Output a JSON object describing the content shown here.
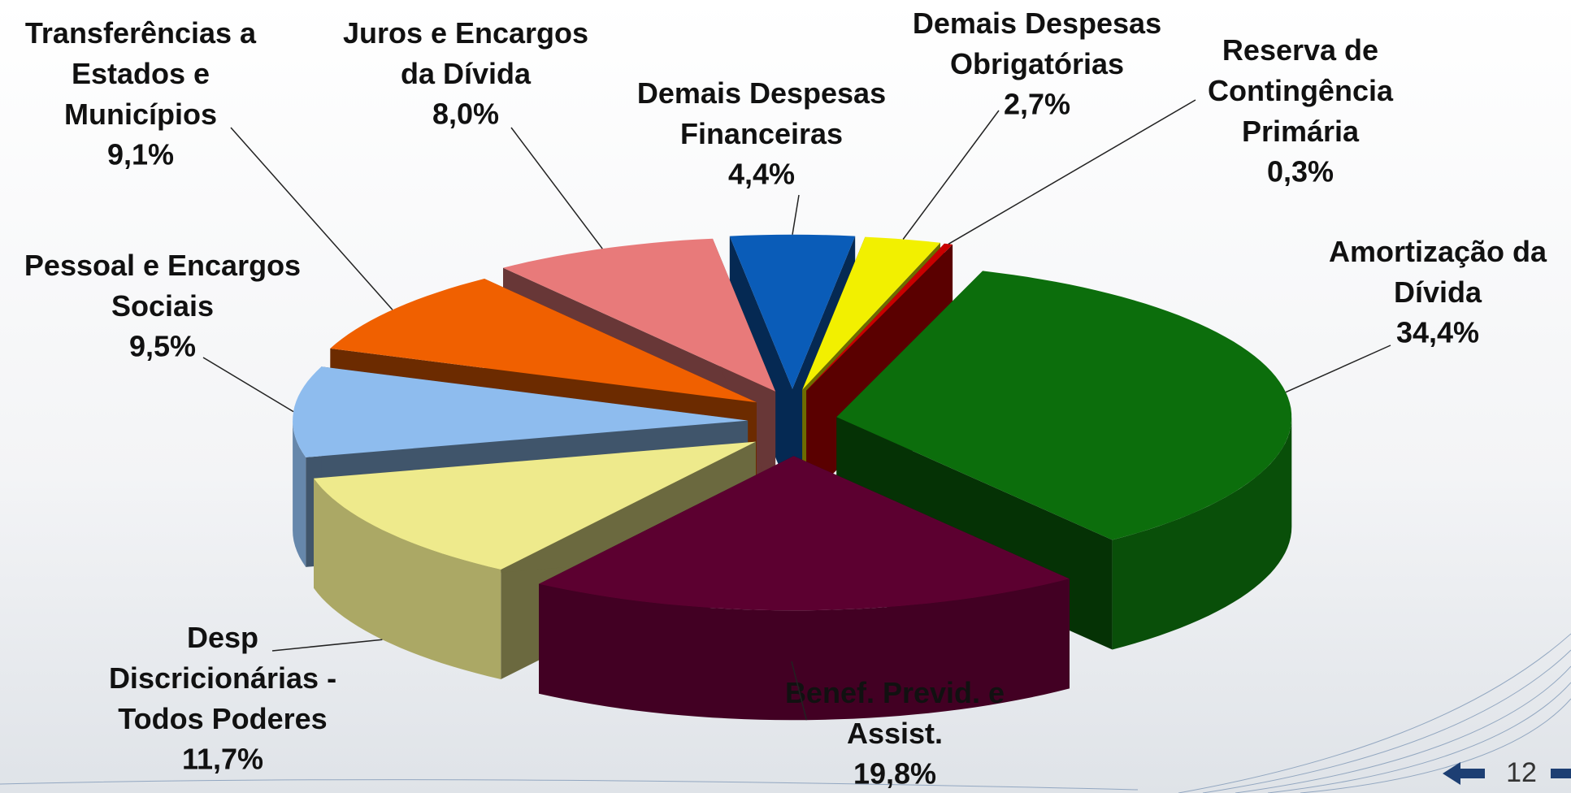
{
  "chart_data": {
    "type": "pie3d",
    "categories": [
      "Demais Despesas\nFinanceiras",
      "Demais Despesas\nObrigatórias",
      "Reserva de\nContingência\nPrimária",
      "Amortização da\nDívida",
      "Benef. Previd. e\nAssist.",
      "Desp\nDiscricionárias -\nTodos Poderes",
      "Pessoal e Encargos\nSociais",
      "Transferências a\nEstados e\nMunicípios",
      "Juros e Encargos\nda Dívida"
    ],
    "values": [
      4.4,
      2.7,
      0.3,
      34.4,
      19.8,
      11.7,
      9.5,
      9.1,
      8.0
    ],
    "value_labels": [
      "4,4%",
      "2,7%",
      "0,3%",
      "34,4%",
      "19,8%",
      "11,7%",
      "9,5%",
      "9,1%",
      "8,0%"
    ],
    "colors": [
      "#0a5cb8",
      "#f2f000",
      "#c80000",
      "#0c6e0c",
      "#5c0030",
      "#eeea8c",
      "#8ebcee",
      "#f06000",
      "#e87a7a"
    ]
  },
  "page_number": "12"
}
